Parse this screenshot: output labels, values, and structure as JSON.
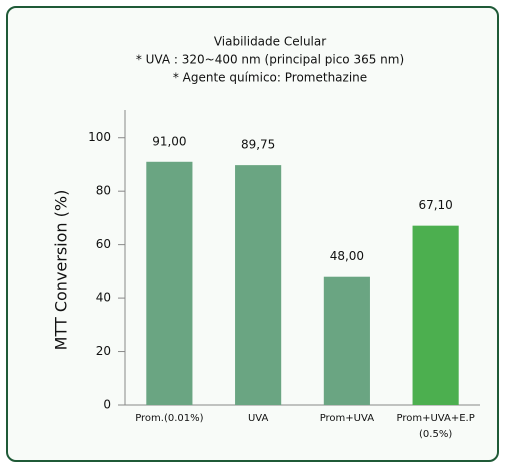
{
  "chart_data": {
    "type": "bar",
    "title": "Viabilidade Celular",
    "subtitle": [
      "* UVA : 320~400 nm (principal pico 365 nm)",
      "* Agente químico: Promethazine"
    ],
    "y_label": "MTT Conversion (%)",
    "categories": [
      "Prom.(0.01%)",
      "UVA",
      "Prom+UVA",
      "Prom+UVA+E.P (0.5%)"
    ],
    "values": [
      91.0,
      89.75,
      48.0,
      67.1
    ],
    "value_labels": [
      "91,00",
      "89,75",
      "48,00",
      "67,10"
    ],
    "colors": [
      "#6aa582",
      "#6aa582",
      "#6aa582",
      "#4caf4f"
    ],
    "ylim": [
      0,
      110
    ],
    "yticks": [
      0,
      20,
      40,
      60,
      80,
      100
    ],
    "grid": false
  }
}
